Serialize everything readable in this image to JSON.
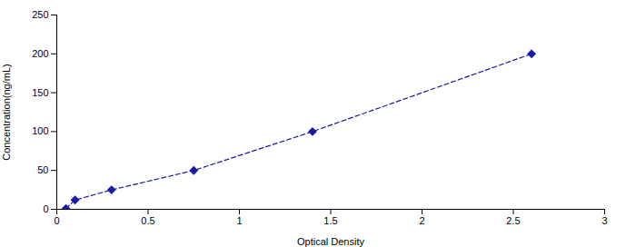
{
  "chart_data": {
    "type": "line",
    "xlabel": "Optical Density",
    "ylabel": "Concentration(ng/mL)",
    "x": [
      0.05,
      0.1,
      0.3,
      0.75,
      1.4,
      2.6
    ],
    "values": [
      1,
      12,
      25,
      50,
      100,
      200
    ],
    "color": "#1a1aaa",
    "marker": "diamond",
    "line_style": "dashed",
    "xlim": [
      0,
      3
    ],
    "ylim": [
      0,
      250
    ],
    "xticks": [
      0,
      0.5,
      1,
      1.5,
      2,
      2.5,
      3
    ],
    "yticks": [
      0,
      50,
      100,
      150,
      200,
      250
    ],
    "grid": false
  }
}
